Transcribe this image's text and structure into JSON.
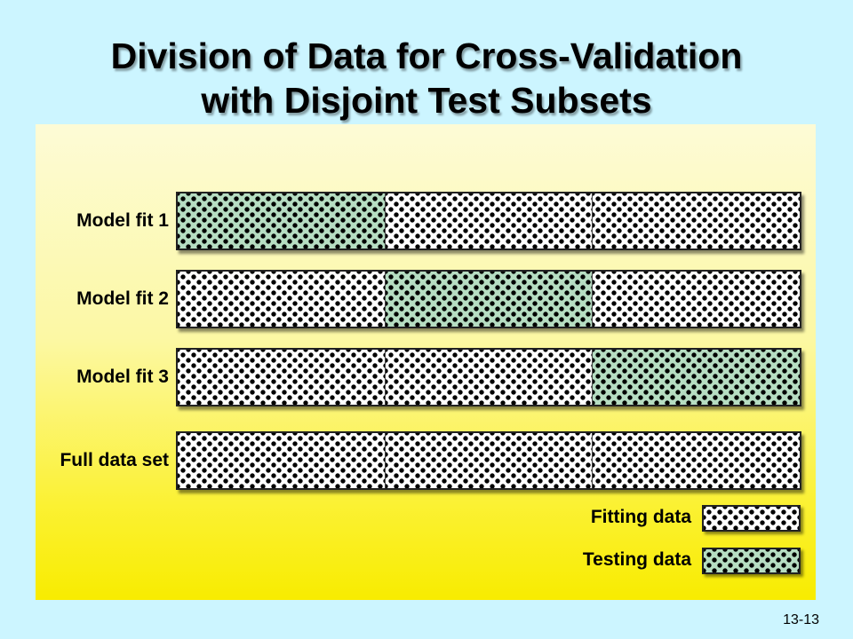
{
  "title": {
    "line1": "Division of Data for Cross-Validation",
    "line2": "with Disjoint Test Subsets"
  },
  "rows": [
    {
      "label": "Model fit 1",
      "segments": [
        "testing",
        "fitting",
        "fitting"
      ]
    },
    {
      "label": "Model fit 2",
      "segments": [
        "fitting",
        "testing",
        "fitting"
      ]
    },
    {
      "label": "Model fit 3",
      "segments": [
        "fitting",
        "fitting",
        "testing"
      ]
    },
    {
      "label": "Full data set",
      "segments": [
        "fitting",
        "fitting",
        "fitting"
      ]
    }
  ],
  "legend": {
    "fitting_label": "Fitting data",
    "testing_label": "Testing data"
  },
  "colors": {
    "background": "#ccf5ff",
    "testing_fill": "#b6ddc2",
    "fitting_fill": "#ffffff"
  },
  "page_number": "13-13"
}
